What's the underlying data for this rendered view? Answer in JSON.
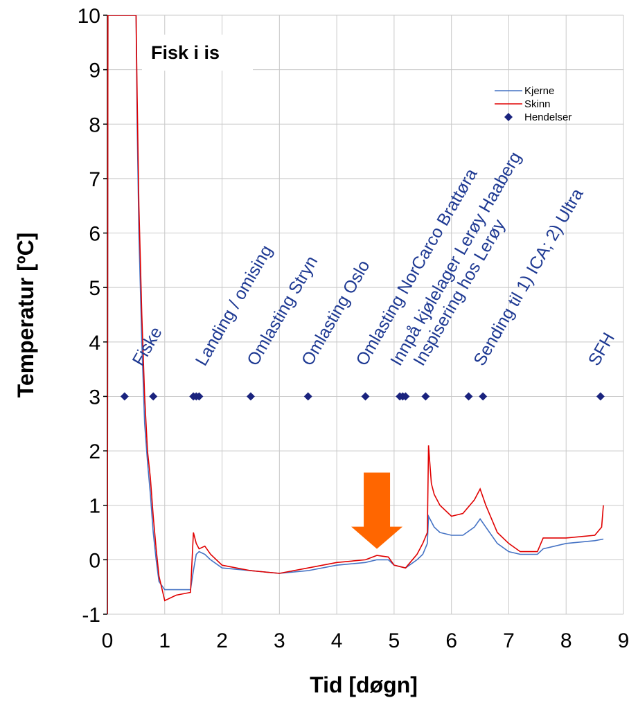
{
  "chart_data": {
    "type": "line",
    "annotation_box": "Fisk i is",
    "xlabel": "Tid  [døgn]",
    "ylabel": "Temperatur  [ºC]",
    "xlim": [
      0,
      9
    ],
    "ylim": [
      -1,
      10
    ],
    "x_ticks": [
      0,
      1,
      2,
      3,
      4,
      5,
      6,
      7,
      8,
      9
    ],
    "y_ticks": [
      -1,
      0,
      1,
      2,
      3,
      4,
      5,
      6,
      7,
      8,
      9,
      10
    ],
    "grid": true,
    "legend_position": "top-right",
    "legend": [
      "Kjerne",
      "Skinn",
      "Hendelser"
    ],
    "colors": {
      "Kjerne": "#4472c4",
      "Skinn": "#e00000",
      "Hendelser": "#1a237e",
      "arrow": "#ff6600"
    },
    "series": [
      {
        "name": "Kjerne",
        "type": "line",
        "x": [
          0.0,
          0.01,
          0.03,
          0.5,
          0.52,
          0.55,
          0.6,
          0.65,
          0.7,
          0.75,
          0.8,
          0.85,
          0.9,
          1.0,
          1.2,
          1.45,
          1.5,
          1.55,
          1.6,
          1.7,
          1.8,
          2.0,
          2.5,
          3.0,
          3.5,
          4.0,
          4.5,
          4.7,
          4.9,
          5.0,
          5.2,
          5.4,
          5.5,
          5.58,
          5.6,
          5.7,
          5.8,
          6.0,
          6.2,
          6.4,
          6.5,
          6.6,
          6.8,
          7.0,
          7.2,
          7.5,
          7.6,
          8.0,
          8.5,
          8.65
        ],
        "y": [
          -1,
          10,
          10,
          10,
          8.0,
          6.0,
          4.0,
          2.5,
          1.8,
          1.2,
          0.5,
          0.0,
          -0.4,
          -0.55,
          -0.55,
          -0.55,
          -0.2,
          0.1,
          0.15,
          0.1,
          0.0,
          -0.15,
          -0.2,
          -0.25,
          -0.2,
          -0.1,
          -0.05,
          0.0,
          0.0,
          -0.1,
          -0.15,
          0.0,
          0.1,
          0.3,
          0.8,
          0.6,
          0.5,
          0.45,
          0.45,
          0.6,
          0.75,
          0.6,
          0.3,
          0.15,
          0.1,
          0.1,
          0.2,
          0.3,
          0.35,
          0.38
        ]
      },
      {
        "name": "Skinn",
        "type": "line",
        "x": [
          0.0,
          0.01,
          0.03,
          0.5,
          0.52,
          0.55,
          0.6,
          0.65,
          0.7,
          0.75,
          0.8,
          0.85,
          0.9,
          1.0,
          1.2,
          1.45,
          1.5,
          1.55,
          1.6,
          1.7,
          1.8,
          2.0,
          2.5,
          3.0,
          3.5,
          4.0,
          4.5,
          4.7,
          4.9,
          5.0,
          5.2,
          5.4,
          5.5,
          5.58,
          5.6,
          5.65,
          5.7,
          5.8,
          6.0,
          6.2,
          6.4,
          6.5,
          6.6,
          6.8,
          7.0,
          7.2,
          7.5,
          7.6,
          8.0,
          8.5,
          8.62,
          8.65
        ],
        "y": [
          -1,
          10,
          10,
          10,
          8.5,
          6.5,
          4.5,
          3.0,
          2.0,
          1.5,
          0.8,
          0.2,
          -0.3,
          -0.75,
          -0.65,
          -0.6,
          0.5,
          0.3,
          0.2,
          0.25,
          0.1,
          -0.1,
          -0.2,
          -0.25,
          -0.15,
          -0.05,
          0.0,
          0.08,
          0.05,
          -0.1,
          -0.15,
          0.1,
          0.3,
          0.5,
          2.1,
          1.4,
          1.2,
          1.0,
          0.8,
          0.85,
          1.1,
          1.3,
          1.0,
          0.5,
          0.3,
          0.15,
          0.15,
          0.4,
          0.4,
          0.45,
          0.6,
          1.0
        ]
      },
      {
        "name": "Hendelser",
        "type": "scatter",
        "x": [
          0.3,
          0.8,
          1.5,
          1.55,
          1.6,
          2.5,
          3.5,
          4.5,
          5.1,
          5.15,
          5.2,
          5.55,
          6.3,
          6.55,
          8.6
        ],
        "y": [
          3,
          3,
          3,
          3,
          3,
          3,
          3,
          3,
          3,
          3,
          3,
          3,
          3,
          3,
          3
        ]
      }
    ],
    "event_labels": [
      {
        "text": "Fiske",
        "x": 0.6
      },
      {
        "text": "Landing / omising",
        "x": 1.7
      },
      {
        "text": "Omlasting Stryn",
        "x": 2.6
      },
      {
        "text": "Omlasting Oslo",
        "x": 3.55
      },
      {
        "text": "Omlasting NorCarco Brattøra",
        "x": 4.5
      },
      {
        "text": "Innpå kjølelager Lerøy Haaberg",
        "x": 5.1
      },
      {
        "text": "Inspisering hos Lerøy",
        "x": 5.5
      },
      {
        "text": "Sending til 1) ICA; 2) Ultra",
        "x": 6.55
      },
      {
        "text": "SFH",
        "x": 8.55
      }
    ],
    "arrow_annotation": {
      "x": 4.7,
      "y_top": 1.6,
      "y_bottom": 0.2
    }
  }
}
